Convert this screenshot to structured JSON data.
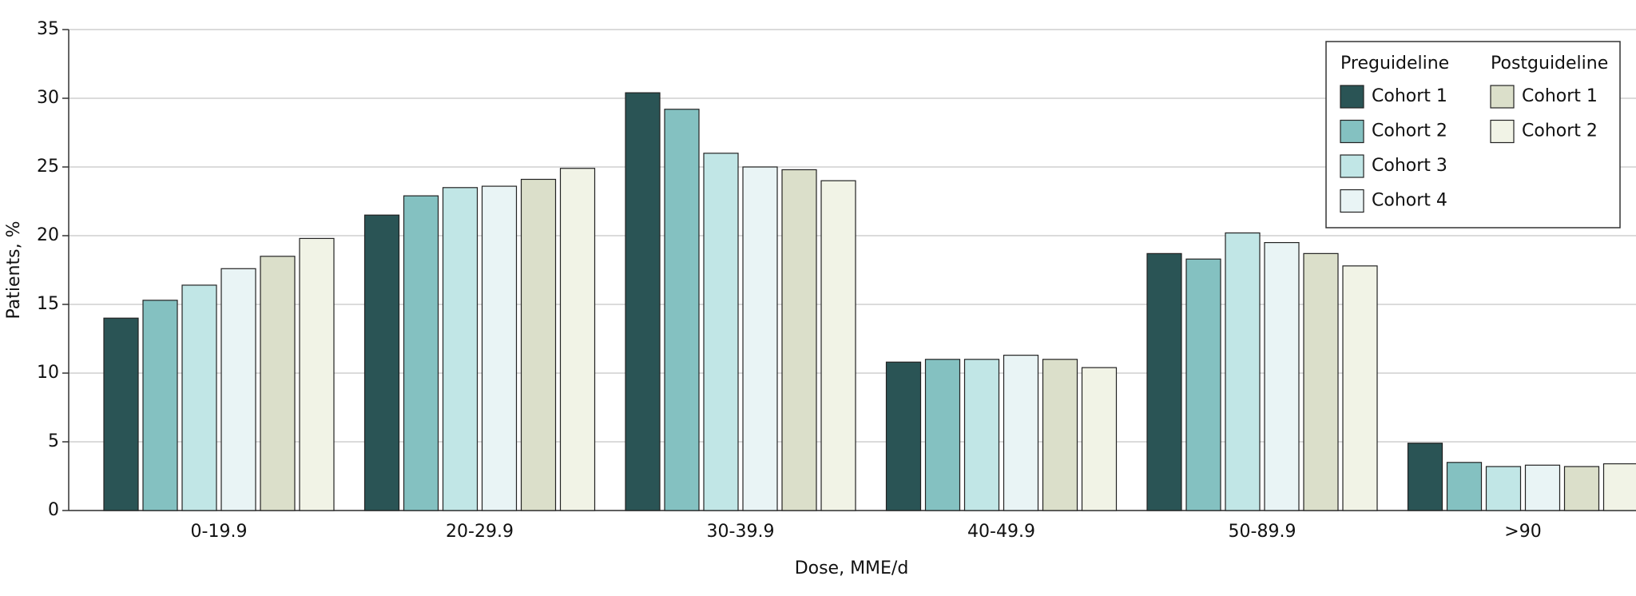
{
  "chart_data": {
    "type": "bar",
    "x_label": "Dose, MME/d",
    "y_label": "Patients, %",
    "categories": [
      "0-19.9",
      "20-29.9",
      "30-39.9",
      "40-49.9",
      "50-89.9",
      ">90"
    ],
    "series_groups": [
      {
        "name": "Preguideline",
        "series": [
          {
            "name": "Cohort 1",
            "color": "#2a5455",
            "values": [
              14.0,
              21.5,
              30.4,
              10.8,
              18.7,
              4.9
            ]
          },
          {
            "name": "Cohort 2",
            "color": "#84c1c1",
            "values": [
              15.3,
              22.9,
              29.2,
              11.0,
              18.3,
              3.5
            ]
          },
          {
            "name": "Cohort 3",
            "color": "#c1e6e6",
            "values": [
              16.4,
              23.5,
              26.0,
              11.0,
              20.2,
              3.2
            ]
          },
          {
            "name": "Cohort 4",
            "color": "#e9f4f5",
            "values": [
              17.6,
              23.6,
              25.0,
              11.3,
              19.5,
              3.3
            ]
          }
        ]
      },
      {
        "name": "Postguideline",
        "series": [
          {
            "name": "Cohort 1",
            "color": "#dbdfca",
            "values": [
              18.5,
              24.1,
              24.8,
              11.0,
              18.7,
              3.2
            ]
          },
          {
            "name": "Cohort 2",
            "color": "#f1f3e6",
            "values": [
              19.8,
              24.9,
              24.0,
              10.4,
              17.8,
              3.4
            ]
          }
        ]
      }
    ],
    "ylim": [
      0,
      35
    ],
    "yticks": [
      0,
      5,
      10,
      15,
      20,
      25,
      30,
      35
    ],
    "grid": true,
    "legend": "upper right"
  }
}
